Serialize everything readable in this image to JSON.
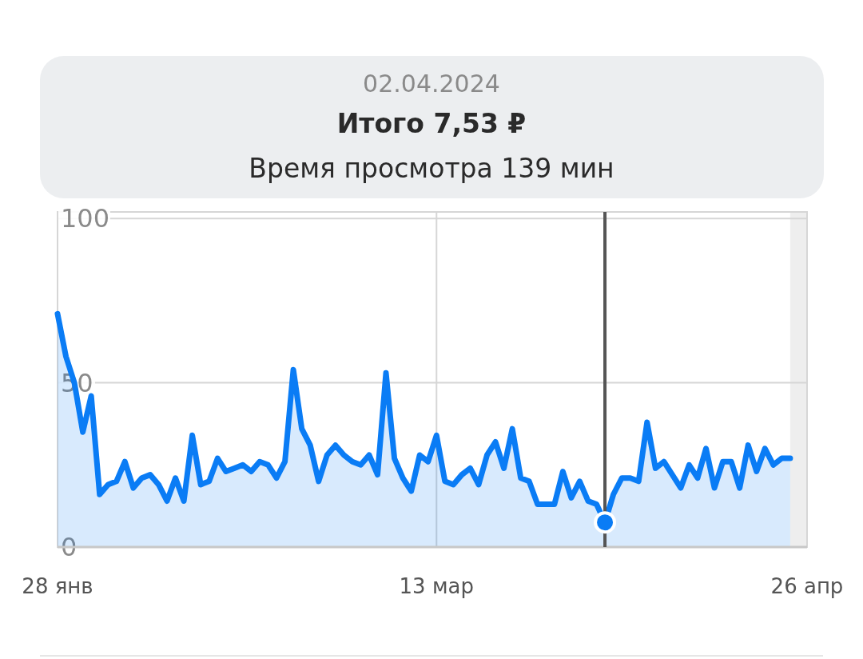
{
  "chart_data": {
    "type": "area",
    "x": [
      "2024-01-28",
      "2024-01-29",
      "2024-01-30",
      "2024-01-31",
      "2024-02-01",
      "2024-02-02",
      "2024-02-03",
      "2024-02-04",
      "2024-02-05",
      "2024-02-06",
      "2024-02-07",
      "2024-02-08",
      "2024-02-09",
      "2024-02-10",
      "2024-02-11",
      "2024-02-12",
      "2024-02-13",
      "2024-02-14",
      "2024-02-15",
      "2024-02-16",
      "2024-02-17",
      "2024-02-18",
      "2024-02-19",
      "2024-02-20",
      "2024-02-21",
      "2024-02-22",
      "2024-02-23",
      "2024-02-24",
      "2024-02-25",
      "2024-02-26",
      "2024-02-27",
      "2024-02-28",
      "2024-02-29",
      "2024-03-01",
      "2024-03-02",
      "2024-03-03",
      "2024-03-04",
      "2024-03-05",
      "2024-03-06",
      "2024-03-07",
      "2024-03-08",
      "2024-03-09",
      "2024-03-10",
      "2024-03-11",
      "2024-03-12",
      "2024-03-13",
      "2024-03-14",
      "2024-03-15",
      "2024-03-16",
      "2024-03-17",
      "2024-03-18",
      "2024-03-19",
      "2024-03-20",
      "2024-03-21",
      "2024-03-22",
      "2024-03-23",
      "2024-03-24",
      "2024-03-25",
      "2024-03-26",
      "2024-03-27",
      "2024-03-28",
      "2024-03-29",
      "2024-03-30",
      "2024-03-31",
      "2024-04-01",
      "2024-04-02",
      "2024-04-03",
      "2024-04-04",
      "2024-04-05",
      "2024-04-06",
      "2024-04-07",
      "2024-04-08",
      "2024-04-09",
      "2024-04-10",
      "2024-04-11",
      "2024-04-12",
      "2024-04-13",
      "2024-04-14",
      "2024-04-15",
      "2024-04-16",
      "2024-04-17",
      "2024-04-18",
      "2024-04-19",
      "2024-04-20",
      "2024-04-21",
      "2024-04-22",
      "2024-04-23",
      "2024-04-24"
    ],
    "series": [
      {
        "color": "#0a7cf5",
        "values": [
          71,
          58,
          50,
          35,
          46,
          16,
          19,
          20,
          26,
          18,
          21,
          22,
          19,
          14,
          21,
          14,
          34,
          19,
          20,
          27,
          23,
          24,
          25,
          23,
          26,
          25,
          21,
          26,
          54,
          36,
          31,
          20,
          28,
          31,
          28,
          26,
          25,
          28,
          22,
          53,
          27,
          21,
          17,
          28,
          26,
          34,
          20,
          19,
          22,
          24,
          19,
          28,
          32,
          24,
          36,
          21,
          20,
          13,
          13,
          13,
          23,
          15,
          20,
          14,
          13,
          7.5,
          16,
          21,
          21,
          20,
          38,
          24,
          26,
          22,
          18,
          25,
          21,
          30,
          18,
          26,
          26,
          18,
          31,
          23,
          30,
          25,
          27,
          27
        ]
      }
    ],
    "xlim": [
      "2024-01-28",
      "2024-04-26"
    ],
    "xticks": [
      {
        "value": "2024-01-28",
        "label": "28 янв"
      },
      {
        "value": "2024-03-13",
        "label": "13 мар"
      },
      {
        "value": "2024-04-26",
        "label": "26 апр"
      }
    ],
    "ylim": [
      0,
      102
    ],
    "yticks": [
      0,
      50,
      100
    ],
    "grid": true,
    "bands": [
      {
        "axis": "x",
        "from": "2024-04-24",
        "to": "2024-04-26",
        "color": "#eeeeee"
      }
    ],
    "ref_lines": [
      {
        "axis": "x",
        "value": "2024-04-02",
        "color": "#555555"
      }
    ],
    "annotations": [
      "02.04.2024",
      "Итого 7,53 ₽",
      "Время просмотра 139 мин"
    ]
  }
}
